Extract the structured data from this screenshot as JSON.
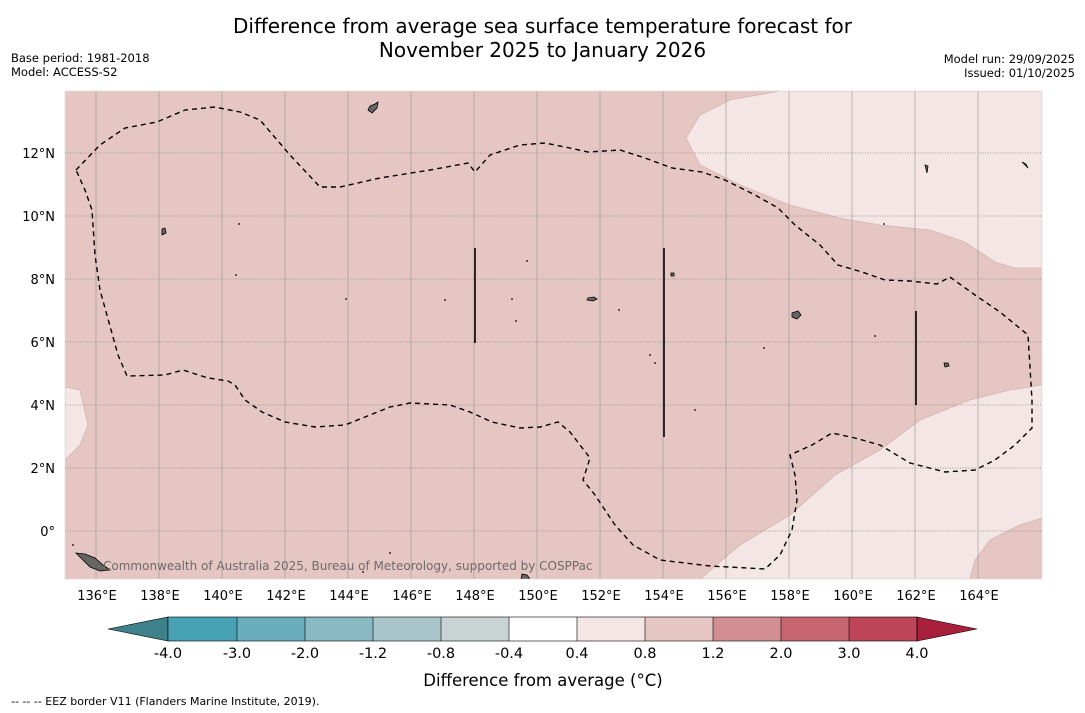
{
  "title": {
    "line1": "Difference from average sea surface temperature forecast for",
    "line2": "November 2025 to January 2026"
  },
  "meta": {
    "base_period": "Base period: 1981-2018",
    "model": "Model: ACCESS-S2",
    "model_run": "Model run: 29/09/2025",
    "issued": "Issued: 01/10/2025"
  },
  "map": {
    "lon_range": [
      135,
      166
    ],
    "lat_range": [
      -1.5,
      14
    ],
    "lon_ticks": [
      "136°E",
      "138°E",
      "140°E",
      "142°E",
      "144°E",
      "146°E",
      "148°E",
      "150°E",
      "152°E",
      "154°E",
      "156°E",
      "158°E",
      "160°E",
      "162°E",
      "164°E"
    ],
    "lat_ticks": [
      "12°N",
      "10°N",
      "8°N",
      "6°N",
      "4°N",
      "2°N",
      "0°"
    ],
    "copyright": "Commonwealth of Australia 2025, Bureau of Meteorology, supported by COSPPac",
    "colors": {
      "zone_1_2": "#e6c6c2",
      "zone_04_08": "#f4e6e4",
      "eez_line": "#000000"
    }
  },
  "colorbar": {
    "label": "Difference from average (°C)",
    "ticks": [
      "-4.0",
      "-3.0",
      "-2.0",
      "-1.2",
      "-0.8",
      "-0.4",
      "0.4",
      "0.8",
      "1.2",
      "2.0",
      "3.0",
      "4.0"
    ],
    "colors": [
      "#3f818a",
      "#47a2b3",
      "#6aadbd",
      "#8ab8c3",
      "#a9c7cb",
      "#c9d3d4",
      "#ffffff",
      "#f4e6e4",
      "#e6c6c2",
      "#d38e94",
      "#c86670",
      "#bd4557",
      "#a8203b"
    ]
  },
  "footer": {
    "legend": "--  --  -- EEZ border V11 (Flanders Marine Institute, 2019)."
  }
}
